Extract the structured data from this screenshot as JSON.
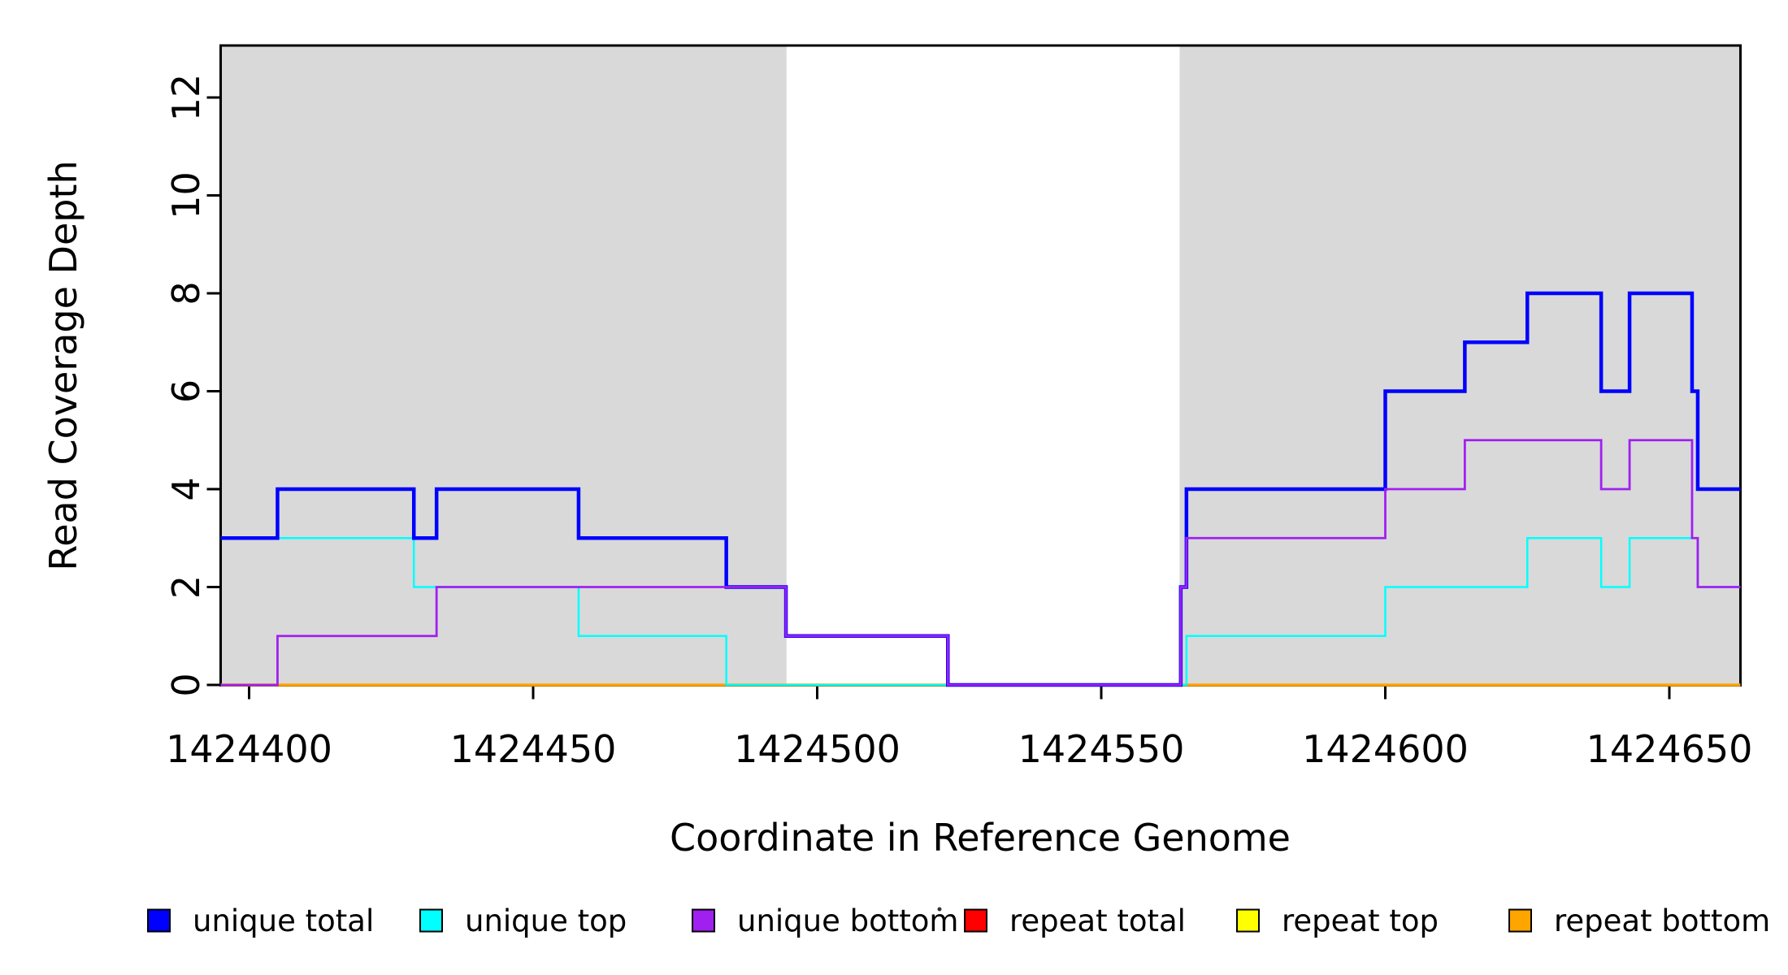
{
  "chart_data": {
    "type": "line",
    "subtype": "step-coverage",
    "title": "",
    "xlabel": "Coordinate in Reference Genome",
    "ylabel": "Read Coverage Depth",
    "xlim": [
      1424395,
      1424662.5
    ],
    "ylim": [
      0,
      13.06
    ],
    "grid": false,
    "legend_position": "bottom",
    "x_ticks": [
      1424400,
      1424450,
      1424500,
      1424550,
      1424600,
      1424650
    ],
    "y_ticks": [
      0,
      2,
      4,
      6,
      8,
      10,
      12
    ],
    "shaded_regions": [
      {
        "x0": 1424395,
        "x1": 1424494.6,
        "color": "#D9D9D9"
      },
      {
        "x0": 1424563.8,
        "x1": 1424662.5,
        "color": "#D9D9D9"
      }
    ],
    "draw_order": [
      "repeat total",
      "repeat top",
      "repeat bottom",
      "unique top",
      "unique total",
      "unique bottom"
    ],
    "series": [
      {
        "name": "unique total",
        "color": "#0000FE",
        "width": 4.5,
        "points": [
          [
            1424395,
            3
          ],
          [
            1424405,
            4
          ],
          [
            1424429,
            3
          ],
          [
            1424433,
            4
          ],
          [
            1424458,
            3
          ],
          [
            1424484,
            2
          ],
          [
            1424494.5,
            1
          ],
          [
            1424523,
            0
          ],
          [
            1424564,
            2
          ],
          [
            1424565,
            4
          ],
          [
            1424600,
            6
          ],
          [
            1424614,
            7
          ],
          [
            1424625,
            8
          ],
          [
            1424638,
            6
          ],
          [
            1424643,
            8
          ],
          [
            1424654,
            6
          ],
          [
            1424655,
            4
          ],
          [
            1424662.5,
            4
          ]
        ]
      },
      {
        "name": "unique top",
        "color": "#00FFFF",
        "width": 2.5,
        "points": [
          [
            1424395,
            3
          ],
          [
            1424429,
            2
          ],
          [
            1424458,
            1
          ],
          [
            1424484,
            0
          ],
          [
            1424565,
            1
          ],
          [
            1424600,
            2
          ],
          [
            1424625,
            3
          ],
          [
            1424638,
            2
          ],
          [
            1424643,
            3
          ],
          [
            1424655,
            2
          ],
          [
            1424662.5,
            2
          ]
        ]
      },
      {
        "name": "unique bottom",
        "color": "#A020F0",
        "width": 2.8,
        "points": [
          [
            1424395,
            0
          ],
          [
            1424405,
            1
          ],
          [
            1424433,
            2
          ],
          [
            1424494.5,
            1
          ],
          [
            1424523,
            0
          ],
          [
            1424564,
            2
          ],
          [
            1424565,
            3
          ],
          [
            1424600,
            4
          ],
          [
            1424614,
            5
          ],
          [
            1424638,
            4
          ],
          [
            1424643,
            5
          ],
          [
            1424654,
            3
          ],
          [
            1424655,
            2
          ],
          [
            1424662.5,
            2
          ]
        ]
      },
      {
        "name": "repeat total",
        "color": "#FF0000",
        "width": 3,
        "points": [
          [
            1424395,
            0
          ],
          [
            1424662.5,
            0
          ]
        ]
      },
      {
        "name": "repeat top",
        "color": "#FFFF00",
        "width": 3,
        "points": [
          [
            1424395,
            0
          ],
          [
            1424662.5,
            0
          ]
        ]
      },
      {
        "name": "repeat bottom",
        "color": "#FFA500",
        "width": 3.5,
        "points": [
          [
            1424395,
            0
          ],
          [
            1424662.5,
            0
          ]
        ]
      }
    ]
  },
  "legend": {
    "items": [
      {
        "label": "unique total",
        "color": "#0000FE"
      },
      {
        "label": "unique top",
        "color": "#00FFFF"
      },
      {
        "label": "unique bottom",
        "color": "#A020F0"
      },
      {
        "label": "repeat total",
        "color": "#FF0000"
      },
      {
        "label": "repeat top",
        "color": "#FFFF00"
      },
      {
        "label": "repeat bottom",
        "color": "#FFA500"
      }
    ]
  }
}
